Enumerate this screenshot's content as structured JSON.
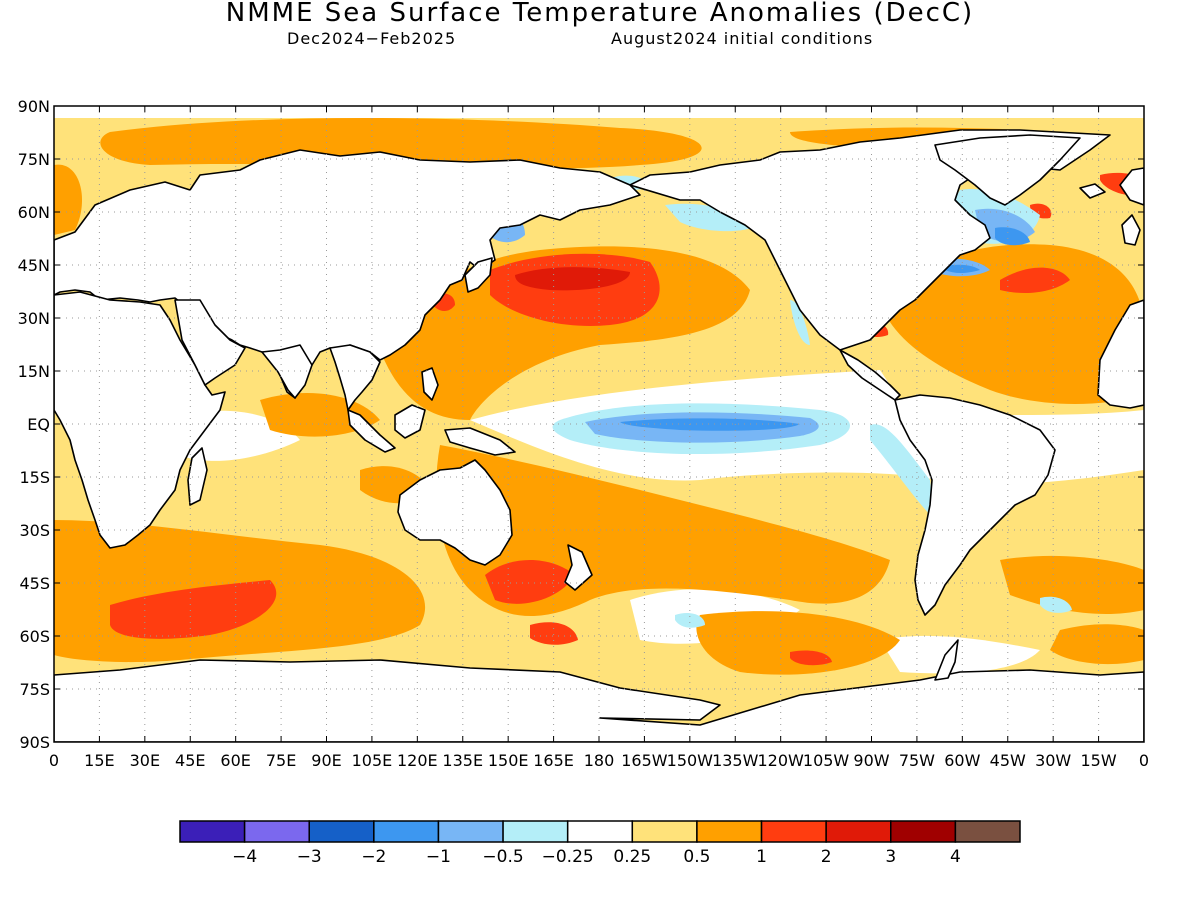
{
  "title": "NMME Sea Surface Temperature Anomalies (DecC)",
  "subtitle_left": "Dec2024−Feb2025",
  "subtitle_right": "August2024 initial conditions",
  "lat_labels": [
    "90N",
    "75N",
    "60N",
    "45N",
    "30N",
    "15N",
    "EQ",
    "15S",
    "30S",
    "45S",
    "60S",
    "75S",
    "90S"
  ],
  "lon_labels": [
    "0",
    "15E",
    "30E",
    "45E",
    "60E",
    "75E",
    "90E",
    "105E",
    "120E",
    "135E",
    "150E",
    "165E",
    "180",
    "165W",
    "150W",
    "135W",
    "120W",
    "105W",
    "90W",
    "75W",
    "60W",
    "45W",
    "30W",
    "15W",
    "0"
  ],
  "colorbar": {
    "colors": [
      "#3b1fb8",
      "#7b68ee",
      "#1560c8",
      "#3d97f0",
      "#78b6f5",
      "#b4eef8",
      "#ffffff",
      "#ffe27a",
      "#ffa000",
      "#ff3d10",
      "#e01a08",
      "#a00000",
      "#7a5040"
    ],
    "labels": [
      "−4",
      "−3",
      "−2",
      "−1",
      "−0.5",
      "−0.25",
      "0.25",
      "0.5",
      "1",
      "2",
      "3",
      "4"
    ]
  },
  "colors": {
    "land_fill": "#ffffff",
    "coast": "#000000",
    "grid": "#9a9a9a",
    "weak_warm": "#ffe27a",
    "moderate_warm": "#ffa000",
    "strong_warm": "#ff3d10",
    "very_strong_warm": "#e01a08",
    "weak_cool": "#b4eef8",
    "moderate_cool": "#78b6f5",
    "strong_cool": "#3d97f0"
  }
}
